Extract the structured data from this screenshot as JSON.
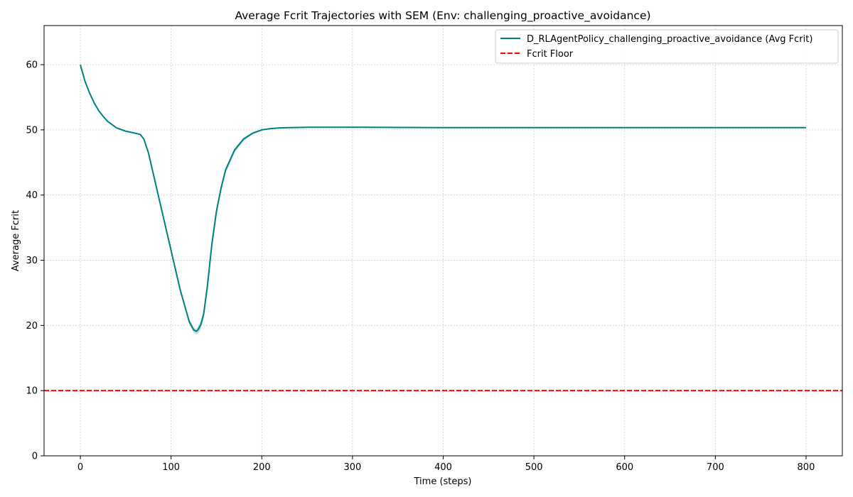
{
  "chart_data": {
    "type": "line",
    "title": "Average Fcrit Trajectories with SEM (Env: challenging_proactive_avoidance)",
    "xlabel": "Time (steps)",
    "ylabel": "Average Fcrit",
    "xlim": [
      -40,
      840
    ],
    "ylim": [
      0,
      66
    ],
    "x_ticks": [
      0,
      100,
      200,
      300,
      400,
      500,
      600,
      700,
      800
    ],
    "y_ticks": [
      0,
      10,
      20,
      30,
      40,
      50,
      60
    ],
    "grid": true,
    "legend_position": "top-right",
    "series": [
      {
        "name": "D_RLAgentPolicy_challenging_proactive_avoidance (Avg Fcrit)",
        "color": "#008080",
        "band_color": "#80c0c0",
        "x": [
          0,
          5,
          10,
          15,
          20,
          25,
          30,
          40,
          50,
          60,
          66,
          70,
          75,
          80,
          90,
          100,
          110,
          120,
          125,
          128,
          130,
          133,
          136,
          140,
          145,
          150,
          155,
          160,
          170,
          180,
          190,
          200,
          210,
          220,
          230,
          250,
          280,
          300,
          400,
          500,
          600,
          700,
          800
        ],
        "values": [
          60.0,
          57.5,
          55.7,
          54.2,
          53.0,
          52.1,
          51.3,
          50.3,
          49.8,
          49.5,
          49.3,
          48.6,
          46.5,
          43.5,
          37.5,
          31.5,
          25.5,
          20.6,
          19.3,
          19.1,
          19.4,
          20.2,
          21.8,
          26.0,
          32.5,
          37.5,
          41.0,
          43.8,
          46.9,
          48.6,
          49.5,
          50.0,
          50.2,
          50.3,
          50.35,
          50.4,
          50.4,
          50.4,
          50.35,
          50.35,
          50.35,
          50.35,
          50.35
        ],
        "sem_lower": [
          60.0,
          57.5,
          55.7,
          54.2,
          53.0,
          52.1,
          51.3,
          50.3,
          49.8,
          49.5,
          49.3,
          48.5,
          46.3,
          43.2,
          37.2,
          31.2,
          25.1,
          20.2,
          18.9,
          18.6,
          18.8,
          19.5,
          21.0,
          25.0,
          31.6,
          36.8,
          40.4,
          43.3,
          46.5,
          48.3,
          49.3,
          49.9,
          50.1,
          50.25,
          50.3,
          50.35,
          50.35,
          50.35,
          50.3,
          50.3,
          50.3,
          50.3,
          50.3
        ],
        "sem_upper": [
          60.0,
          57.5,
          55.7,
          54.2,
          53.0,
          52.1,
          51.3,
          50.3,
          49.8,
          49.5,
          49.3,
          48.7,
          46.7,
          43.8,
          37.8,
          31.8,
          25.9,
          21.0,
          19.7,
          19.5,
          19.9,
          20.8,
          22.5,
          26.8,
          33.2,
          38.1,
          41.5,
          44.2,
          47.2,
          48.8,
          49.6,
          50.1,
          50.3,
          50.35,
          50.4,
          50.45,
          50.45,
          50.45,
          50.4,
          50.4,
          50.4,
          50.4,
          50.4
        ]
      },
      {
        "name": "Fcrit Floor",
        "color": "#ff0000",
        "style": "dashed",
        "constant": 10
      }
    ]
  }
}
